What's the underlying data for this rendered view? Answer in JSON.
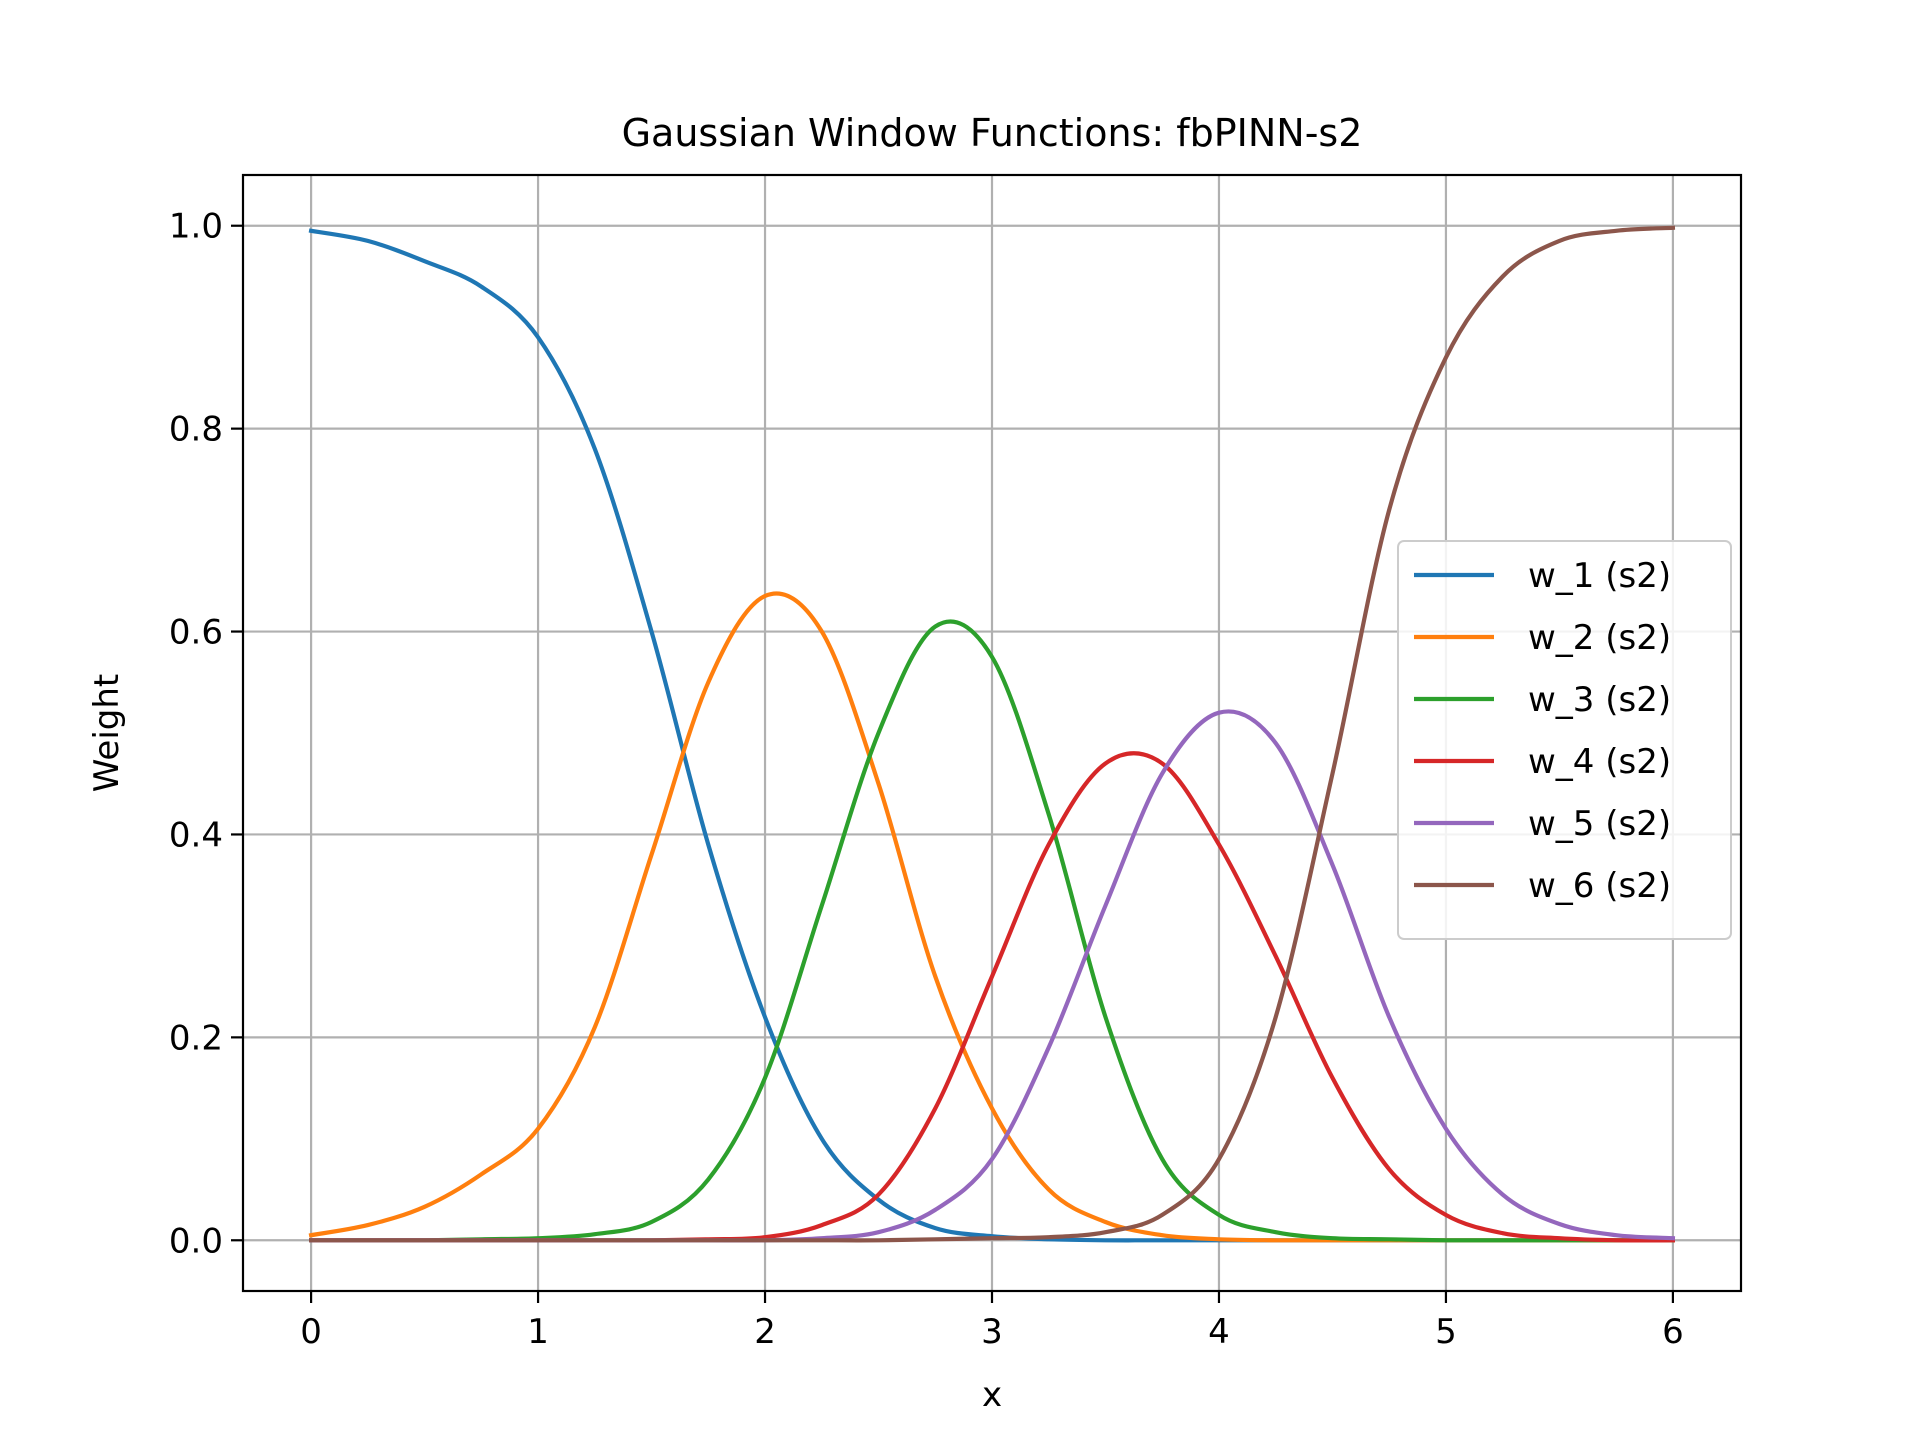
{
  "chart_data": {
    "type": "line",
    "title": "Gaussian Window Functions: fbPINN-s2",
    "xlabel": "x",
    "ylabel": "Weight",
    "xlim": [
      -0.3,
      6.3
    ],
    "ylim": [
      -0.05,
      1.05
    ],
    "xticks": [
      0,
      1,
      2,
      3,
      4,
      5,
      6
    ],
    "xtick_labels": [
      "0",
      "1",
      "2",
      "3",
      "4",
      "5",
      "6"
    ],
    "yticks": [
      0.0,
      0.2,
      0.4,
      0.6,
      0.8,
      1.0
    ],
    "ytick_labels": [
      "0.0",
      "0.2",
      "0.4",
      "0.6",
      "0.8",
      "1.0"
    ],
    "grid": true,
    "legend_position": "center-right",
    "x": [
      0,
      0.25,
      0.5,
      0.75,
      1,
      1.25,
      1.5,
      1.75,
      2,
      2.25,
      2.5,
      2.75,
      3,
      3.25,
      3.5,
      3.75,
      4,
      4.25,
      4.5,
      4.75,
      5,
      5.25,
      5.5,
      5.75,
      6
    ],
    "series": [
      {
        "name": "w_1 (s2)",
        "color": "#1f77b4",
        "values": [
          0.995,
          0.985,
          0.965,
          0.94,
          0.89,
          0.78,
          0.6,
          0.39,
          0.22,
          0.1,
          0.04,
          0.012,
          0.004,
          0.001,
          0.0,
          0.0,
          0.0,
          0.0,
          0.0,
          0.0,
          0.0,
          0.0,
          0.0,
          0.0,
          0.0
        ]
      },
      {
        "name": "w_2 (s2)",
        "color": "#ff7f0e",
        "values": [
          0.005,
          0.015,
          0.033,
          0.065,
          0.11,
          0.21,
          0.38,
          0.55,
          0.635,
          0.6,
          0.45,
          0.26,
          0.13,
          0.05,
          0.018,
          0.005,
          0.001,
          0.0,
          0.0,
          0.0,
          0.0,
          0.0,
          0.0,
          0.0,
          0.0
        ]
      },
      {
        "name": "w_3 (s2)",
        "color": "#2ca02c",
        "values": [
          0.0,
          0.0,
          0.0,
          0.001,
          0.002,
          0.006,
          0.018,
          0.06,
          0.16,
          0.33,
          0.5,
          0.605,
          0.575,
          0.42,
          0.22,
          0.08,
          0.025,
          0.008,
          0.002,
          0.001,
          0.0,
          0.0,
          0.0,
          0.0,
          0.0
        ]
      },
      {
        "name": "w_4 (s2)",
        "color": "#d62728",
        "values": [
          0.0,
          0.0,
          0.0,
          0.0,
          0.0,
          0.0,
          0.0,
          0.001,
          0.003,
          0.015,
          0.045,
          0.13,
          0.26,
          0.39,
          0.47,
          0.47,
          0.39,
          0.28,
          0.16,
          0.07,
          0.025,
          0.007,
          0.002,
          0.0,
          0.0
        ]
      },
      {
        "name": "w_5 (s2)",
        "color": "#9467bd",
        "values": [
          0.0,
          0.0,
          0.0,
          0.0,
          0.0,
          0.0,
          0.0,
          0.0,
          0.0,
          0.002,
          0.008,
          0.03,
          0.08,
          0.19,
          0.33,
          0.46,
          0.52,
          0.49,
          0.37,
          0.22,
          0.11,
          0.045,
          0.016,
          0.005,
          0.002
        ]
      },
      {
        "name": "w_6 (s2)",
        "color": "#8c564b",
        "values": [
          0.0,
          0.0,
          0.0,
          0.0,
          0.0,
          0.0,
          0.0,
          0.0,
          0.0,
          0.0,
          0.0,
          0.001,
          0.002,
          0.003,
          0.008,
          0.025,
          0.08,
          0.22,
          0.46,
          0.72,
          0.87,
          0.95,
          0.985,
          0.995,
          0.998
        ]
      }
    ]
  }
}
